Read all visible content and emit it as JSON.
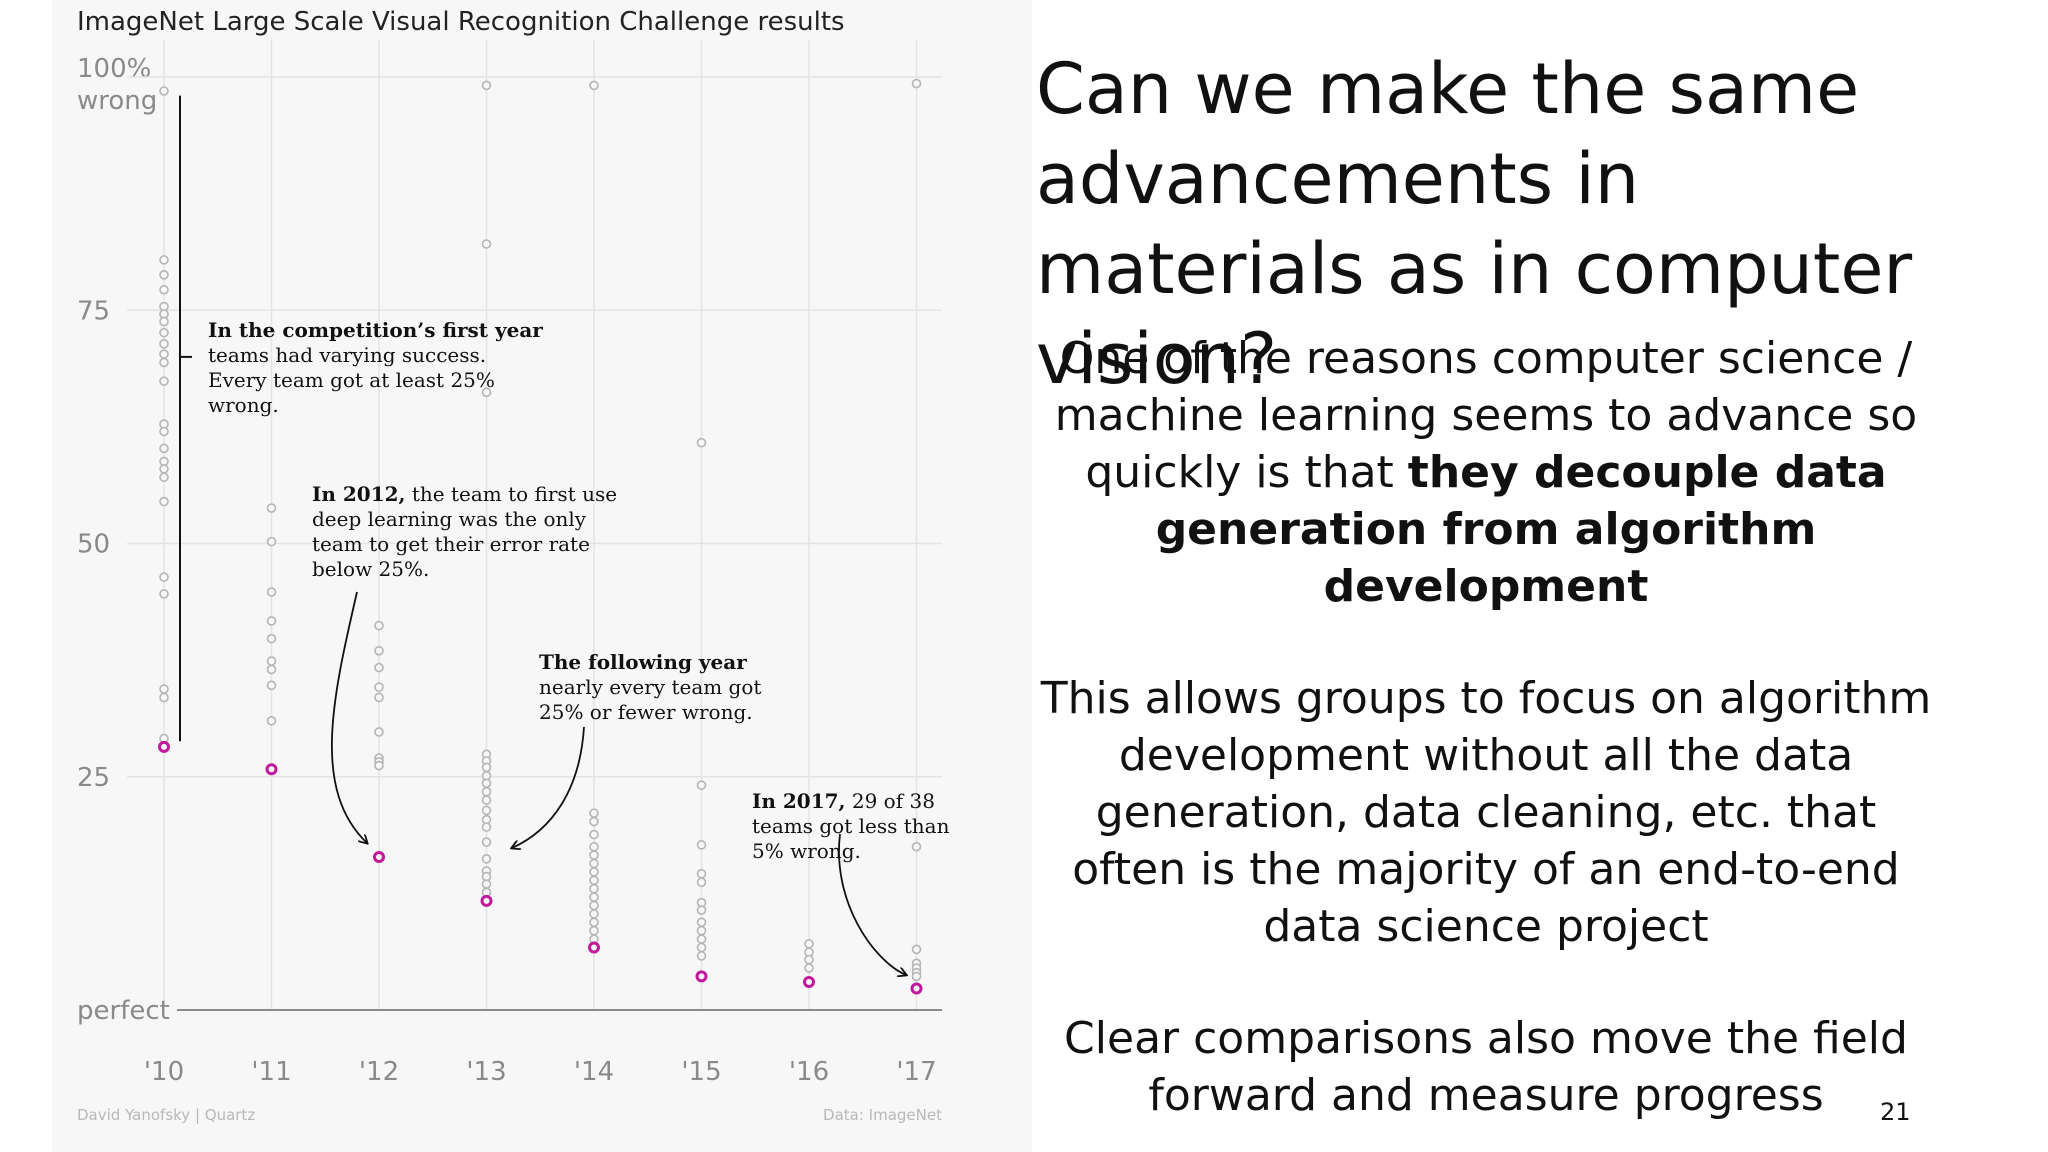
{
  "chart_data": {
    "type": "scatter",
    "title": "ImageNet Large Scale Visual Recognition Challenge results",
    "y_ticks": [
      {
        "value": 100,
        "lines": [
          "100%",
          "wrong"
        ]
      },
      {
        "value": 75,
        "lines": [
          "75"
        ]
      },
      {
        "value": 50,
        "lines": [
          "50"
        ]
      },
      {
        "value": 25,
        "lines": [
          "25"
        ]
      },
      {
        "value": 0,
        "lines": [
          "perfect"
        ]
      }
    ],
    "ylim": [
      0,
      100
    ],
    "x_ticks": [
      "'10",
      "'11",
      "'12",
      "'13",
      "'14",
      "'15",
      "'16",
      "'17"
    ],
    "grid": true,
    "series": [
      {
        "highlight": false,
        "points": [
          {
            "x": 0,
            "y": 98.5
          },
          {
            "x": 0,
            "y": 80.4
          },
          {
            "x": 0,
            "y": 78.8
          },
          {
            "x": 0,
            "y": 77.2
          },
          {
            "x": 0,
            "y": 75.4
          },
          {
            "x": 0,
            "y": 74.6
          },
          {
            "x": 0,
            "y": 73.8
          },
          {
            "x": 0,
            "y": 72.6
          },
          {
            "x": 0,
            "y": 71.4
          },
          {
            "x": 0,
            "y": 70.3
          },
          {
            "x": 0,
            "y": 69.4
          },
          {
            "x": 0,
            "y": 67.4
          },
          {
            "x": 0,
            "y": 62.8
          },
          {
            "x": 0,
            "y": 62.0
          },
          {
            "x": 0,
            "y": 60.2
          },
          {
            "x": 0,
            "y": 58.8
          },
          {
            "x": 0,
            "y": 58.0
          },
          {
            "x": 0,
            "y": 57.1
          },
          {
            "x": 0,
            "y": 54.5
          },
          {
            "x": 0,
            "y": 46.4
          },
          {
            "x": 0,
            "y": 44.6
          },
          {
            "x": 0,
            "y": 34.4
          },
          {
            "x": 0,
            "y": 33.5
          },
          {
            "x": 0,
            "y": 29.1
          },
          {
            "x": 1,
            "y": 53.8
          },
          {
            "x": 1,
            "y": 50.2
          },
          {
            "x": 1,
            "y": 44.8
          },
          {
            "x": 1,
            "y": 41.7
          },
          {
            "x": 1,
            "y": 39.8
          },
          {
            "x": 1,
            "y": 37.4
          },
          {
            "x": 1,
            "y": 36.5
          },
          {
            "x": 1,
            "y": 34.8
          },
          {
            "x": 1,
            "y": 31.0
          },
          {
            "x": 2,
            "y": 41.2
          },
          {
            "x": 2,
            "y": 38.5
          },
          {
            "x": 2,
            "y": 36.7
          },
          {
            "x": 2,
            "y": 34.6
          },
          {
            "x": 2,
            "y": 33.5
          },
          {
            "x": 2,
            "y": 29.8
          },
          {
            "x": 2,
            "y": 27.0
          },
          {
            "x": 2,
            "y": 26.6
          },
          {
            "x": 2,
            "y": 26.2
          },
          {
            "x": 3,
            "y": 99.1
          },
          {
            "x": 3,
            "y": 82.1
          },
          {
            "x": 3,
            "y": 66.2
          },
          {
            "x": 3,
            "y": 27.4
          },
          {
            "x": 3,
            "y": 26.7
          },
          {
            "x": 3,
            "y": 26.0
          },
          {
            "x": 3,
            "y": 25.1
          },
          {
            "x": 3,
            "y": 24.3
          },
          {
            "x": 3,
            "y": 23.4
          },
          {
            "x": 3,
            "y": 22.5
          },
          {
            "x": 3,
            "y": 21.4
          },
          {
            "x": 3,
            "y": 20.4
          },
          {
            "x": 3,
            "y": 19.6
          },
          {
            "x": 3,
            "y": 18.0
          },
          {
            "x": 3,
            "y": 16.2
          },
          {
            "x": 3,
            "y": 14.9
          },
          {
            "x": 3,
            "y": 14.3
          },
          {
            "x": 3,
            "y": 13.5
          },
          {
            "x": 3,
            "y": 12.6
          },
          {
            "x": 4,
            "y": 99.1
          },
          {
            "x": 4,
            "y": 21.1
          },
          {
            "x": 4,
            "y": 20.2
          },
          {
            "x": 4,
            "y": 18.8
          },
          {
            "x": 4,
            "y": 17.5
          },
          {
            "x": 4,
            "y": 16.6
          },
          {
            "x": 4,
            "y": 15.7
          },
          {
            "x": 4,
            "y": 14.8
          },
          {
            "x": 4,
            "y": 13.9
          },
          {
            "x": 4,
            "y": 13.0
          },
          {
            "x": 4,
            "y": 12.1
          },
          {
            "x": 4,
            "y": 11.2
          },
          {
            "x": 4,
            "y": 10.3
          },
          {
            "x": 4,
            "y": 9.4
          },
          {
            "x": 4,
            "y": 8.5
          },
          {
            "x": 4,
            "y": 7.6
          },
          {
            "x": 5,
            "y": 60.8
          },
          {
            "x": 5,
            "y": 24.1
          },
          {
            "x": 5,
            "y": 17.7
          },
          {
            "x": 5,
            "y": 14.6
          },
          {
            "x": 5,
            "y": 13.7
          },
          {
            "x": 5,
            "y": 11.5
          },
          {
            "x": 5,
            "y": 10.7
          },
          {
            "x": 5,
            "y": 9.4
          },
          {
            "x": 5,
            "y": 8.5
          },
          {
            "x": 5,
            "y": 7.6
          },
          {
            "x": 5,
            "y": 6.7
          },
          {
            "x": 5,
            "y": 5.8
          },
          {
            "x": 6,
            "y": 7.1
          },
          {
            "x": 6,
            "y": 6.2
          },
          {
            "x": 6,
            "y": 5.4
          },
          {
            "x": 6,
            "y": 4.5
          },
          {
            "x": 7,
            "y": 99.3
          },
          {
            "x": 7,
            "y": 17.5
          },
          {
            "x": 7,
            "y": 6.5
          },
          {
            "x": 7,
            "y": 5.0
          },
          {
            "x": 7,
            "y": 4.5
          },
          {
            "x": 7,
            "y": 4.0
          },
          {
            "x": 7,
            "y": 3.6
          }
        ]
      },
      {
        "highlight": true,
        "points": [
          {
            "x": 0,
            "y": 28.2
          },
          {
            "x": 1,
            "y": 25.8
          },
          {
            "x": 2,
            "y": 16.4
          },
          {
            "x": 3,
            "y": 11.7
          },
          {
            "x": 4,
            "y": 6.7
          },
          {
            "x": 5,
            "y": 3.6
          },
          {
            "x": 6,
            "y": 3.0
          },
          {
            "x": 7,
            "y": 2.3
          }
        ]
      }
    ],
    "annotations": [
      {
        "lines": [
          [
            {
              "t": "In the competition’s first year",
              "b": true
            }
          ],
          [
            {
              "t": "teams had varying success.",
              "b": false
            }
          ],
          [
            {
              "t": "Every team got at least 25%",
              "b": false
            }
          ],
          [
            {
              "t": "wrong.",
              "b": false
            }
          ]
        ]
      },
      {
        "lines": [
          [
            {
              "t": "In 2012,",
              "b": true
            },
            {
              "t": " the team to first use",
              "b": false
            }
          ],
          [
            {
              "t": "deep learning was the only",
              "b": false
            }
          ],
          [
            {
              "t": "team to get their error rate",
              "b": false
            }
          ],
          [
            {
              "t": "below 25%.",
              "b": false
            }
          ]
        ]
      },
      {
        "lines": [
          [
            {
              "t": "The following year",
              "b": true
            }
          ],
          [
            {
              "t": "nearly every team got",
              "b": false
            }
          ],
          [
            {
              "t": "25% or fewer wrong.",
              "b": false
            }
          ]
        ]
      },
      {
        "lines": [
          [
            {
              "t": "In 2017,",
              "b": true
            },
            {
              "t": " 29 of 38",
              "b": false
            }
          ],
          [
            {
              "t": "teams got less than",
              "b": false
            }
          ],
          [
            {
              "t": "5% wrong.",
              "b": false
            }
          ]
        ]
      }
    ],
    "credit_left": "David Yanofsky | Quartz",
    "credit_right": "Data: ImageNet",
    "colors": {
      "highlight": "#c2189a",
      "marker": "#b5b5b5",
      "grid": "#e4e4e4",
      "baseline": "#8a8a8a"
    }
  },
  "slide": {
    "title": "Can we make the same advancements in materials as in computer vision?",
    "para1_start": "One of the reasons computer science / machine learning seems to advance so quickly is that ",
    "para1_bold": "they decouple data generation from algorithm development",
    "para2": "This allows groups to focus on algorithm development without all the data generation, data cleaning, etc. that often is the majority of an end-to-end data science project",
    "para3": "Clear comparisons also move the field forward and measure progress",
    "page_number": "21"
  }
}
